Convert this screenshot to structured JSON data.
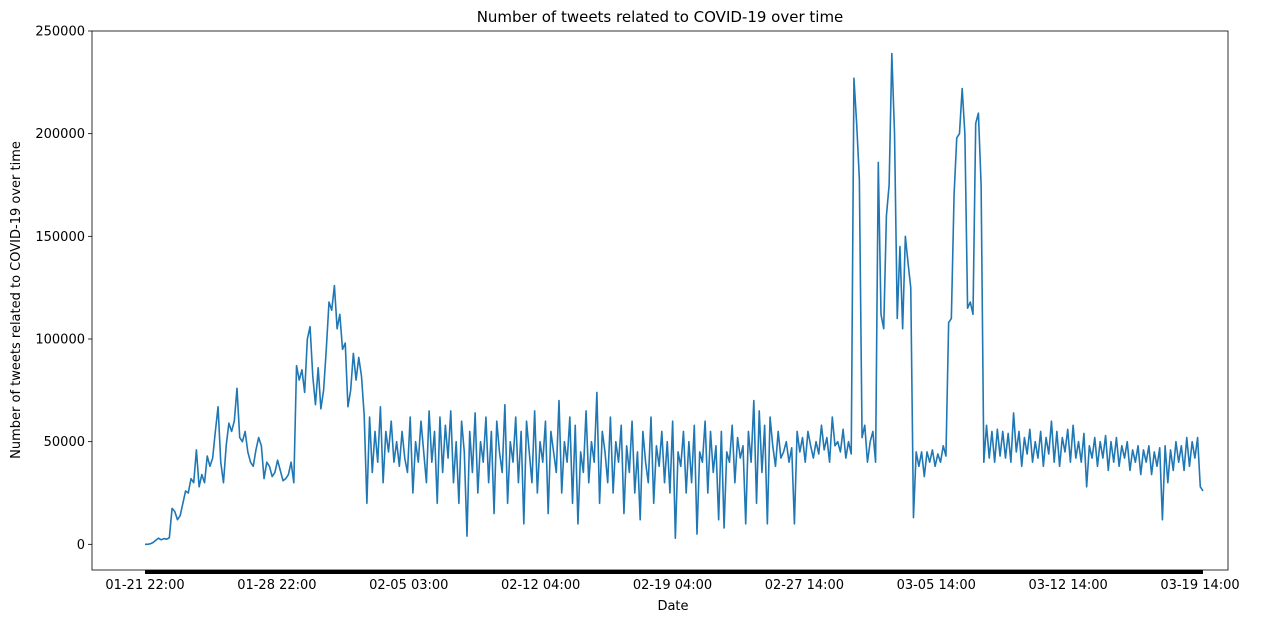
{
  "chart_data": {
    "type": "line",
    "title": "Number of tweets related to COVID-19 over time",
    "xlabel": "Date",
    "ylabel": "Number of tweets related to COVID-19 over time",
    "ylim": [
      -12500,
      250000
    ],
    "yticks": [
      0,
      50000,
      100000,
      150000,
      200000,
      250000
    ],
    "ytick_labels": [
      "0",
      "50000",
      "100000",
      "150000",
      "200000",
      "250000"
    ],
    "xtick_labels": [
      "01-21 22:00",
      "01-28 22:00",
      "02-05 03:00",
      "02-12 04:00",
      "02-19 04:00",
      "02-27 14:00",
      "03-05 14:00",
      "03-12 14:00",
      "03-19 14:00"
    ],
    "grid": false,
    "line_color": "#1f77b4",
    "series": [
      {
        "values": [
          0,
          0,
          300,
          900,
          2000,
          3000,
          2200,
          2800,
          2500,
          3200,
          17500,
          16000,
          12000,
          14000,
          20000,
          26000,
          25000,
          32000,
          30000,
          46000,
          28000,
          34000,
          30000,
          43000,
          38000,
          42000,
          55000,
          67000,
          40000,
          30000,
          48000,
          59000,
          55000,
          60000,
          76000,
          52000,
          50000,
          55000,
          45000,
          40000,
          38000,
          46000,
          52000,
          48000,
          32000,
          40000,
          38000,
          33000,
          35000,
          41000,
          36000,
          31000,
          32000,
          34000,
          40000,
          30000,
          87000,
          80000,
          85000,
          74000,
          100000,
          106000,
          82000,
          68000,
          86000,
          66000,
          75000,
          95000,
          118000,
          114000,
          126000,
          105000,
          112000,
          95000,
          98000,
          67000,
          75000,
          93000,
          80000,
          91000,
          82000,
          63000,
          20000,
          62000,
          35000,
          55000,
          40000,
          67000,
          30000,
          55000,
          45000,
          60000,
          40000,
          50000,
          38000,
          55000,
          42000,
          35000,
          62000,
          25000,
          50000,
          40000,
          60000,
          45000,
          30000,
          65000,
          40000,
          55000,
          20000,
          62000,
          35000,
          58000,
          42000,
          65000,
          30000,
          50000,
          20000,
          60000,
          45000,
          4000,
          55000,
          35000,
          64000,
          25000,
          50000,
          40000,
          62000,
          30000,
          55000,
          15000,
          60000,
          45000,
          35000,
          68000,
          20000,
          50000,
          40000,
          62000,
          30000,
          55000,
          10000,
          60000,
          45000,
          30000,
          65000,
          25000,
          50000,
          40000,
          60000,
          15000,
          55000,
          45000,
          35000,
          70000,
          25000,
          50000,
          40000,
          62000,
          20000,
          58000,
          10000,
          45000,
          35000,
          65000,
          30000,
          50000,
          40000,
          74000,
          20000,
          55000,
          45000,
          30000,
          62000,
          25000,
          50000,
          40000,
          58000,
          15000,
          48000,
          35000,
          60000,
          25000,
          45000,
          12000,
          55000,
          40000,
          30000,
          62000,
          20000,
          48000,
          38000,
          55000,
          30000,
          50000,
          25000,
          60000,
          3000,
          45000,
          38000,
          55000,
          25000,
          50000,
          30000,
          58000,
          5000,
          45000,
          40000,
          60000,
          25000,
          55000,
          35000,
          48000,
          12000,
          55000,
          8000,
          45000,
          40000,
          58000,
          30000,
          52000,
          42000,
          48000,
          10000,
          55000,
          40000,
          70000,
          20000,
          65000,
          35000,
          58000,
          10000,
          62000,
          48000,
          38000,
          55000,
          42000,
          45000,
          50000,
          40000,
          47000,
          10000,
          55000,
          45000,
          52000,
          40000,
          55000,
          48000,
          42000,
          50000,
          44000,
          58000,
          46000,
          52000,
          40000,
          62000,
          48000,
          50000,
          45000,
          56000,
          42000,
          50000,
          44000,
          227000,
          205000,
          178000,
          52000,
          58000,
          40000,
          50000,
          55000,
          40000,
          186000,
          112000,
          105000,
          160000,
          175000,
          239000,
          200000,
          110000,
          145000,
          105000,
          150000,
          137000,
          125000,
          13000,
          45000,
          38000,
          45000,
          33000,
          45000,
          40000,
          46000,
          38000,
          44000,
          40000,
          48000,
          43000,
          108000,
          110000,
          170000,
          198000,
          200000,
          222000,
          200000,
          115000,
          118000,
          112000,
          205000,
          210000,
          175000,
          40000,
          58000,
          42000,
          55000,
          40000,
          56000,
          43000,
          55000,
          42000,
          54000,
          40000,
          64000,
          45000,
          55000,
          38000,
          52000,
          44000,
          56000,
          40000,
          50000,
          42000,
          55000,
          38000,
          52000,
          44000,
          60000,
          40000,
          55000,
          38000,
          52000,
          45000,
          56000,
          40000,
          58000,
          42000,
          50000,
          40000,
          54000,
          28000,
          48000,
          42000,
          52000,
          38000,
          50000,
          42000,
          53000,
          36000,
          50000,
          40000,
          52000,
          38000,
          48000,
          42000,
          50000,
          36000,
          46000,
          40000,
          48000,
          34000,
          46000,
          40000,
          48000,
          34000,
          45000,
          38000,
          47000,
          12000,
          48000,
          30000,
          46000,
          36000,
          50000,
          40000,
          48000,
          36000,
          52000,
          38000,
          50000,
          42000,
          52000,
          28000,
          26000
        ]
      }
    ]
  }
}
